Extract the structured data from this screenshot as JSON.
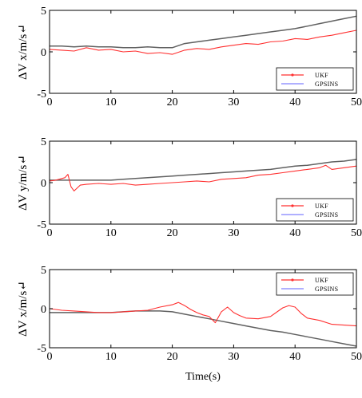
{
  "chart_data": [
    {
      "type": "line",
      "ylabel": "ΔV x/m/s↵",
      "xlabel": "",
      "xlim": [
        0,
        50
      ],
      "ylim": [
        -5,
        5
      ],
      "xticks": [
        "0",
        "10",
        "20",
        "30",
        "40",
        "50"
      ],
      "yticks": [
        "5",
        "0",
        "-5"
      ],
      "legend": {
        "placement": "bottom-right",
        "entries": [
          "UKF",
          "GPSINS"
        ]
      },
      "series": [
        {
          "name": "UKF",
          "color": "#ff3030",
          "x": [
            0,
            2,
            4,
            6,
            8,
            10,
            12,
            14,
            16,
            18,
            20,
            22,
            24,
            26,
            28,
            30,
            32,
            34,
            36,
            38,
            40,
            42,
            44,
            46,
            48,
            50
          ],
          "y": [
            0.3,
            0.2,
            0.1,
            0.5,
            0.2,
            0.3,
            0.0,
            0.1,
            -0.2,
            -0.1,
            -0.3,
            0.2,
            0.4,
            0.3,
            0.6,
            0.8,
            1.0,
            0.9,
            1.2,
            1.3,
            1.6,
            1.5,
            1.8,
            2.0,
            2.3,
            2.6
          ]
        },
        {
          "name": "GPSINS",
          "color": "#606060",
          "x": [
            0,
            2,
            4,
            6,
            8,
            10,
            12,
            14,
            16,
            18,
            20,
            22,
            24,
            26,
            28,
            30,
            32,
            34,
            36,
            38,
            40,
            42,
            44,
            46,
            48,
            50
          ],
          "y": [
            0.7,
            0.7,
            0.6,
            0.7,
            0.6,
            0.6,
            0.5,
            0.5,
            0.6,
            0.5,
            0.5,
            1.0,
            1.2,
            1.4,
            1.6,
            1.8,
            2.0,
            2.2,
            2.4,
            2.6,
            2.8,
            3.1,
            3.4,
            3.7,
            4.0,
            4.3
          ]
        }
      ]
    },
    {
      "type": "line",
      "ylabel": "ΔV y/m/s↵",
      "xlabel": "",
      "xlim": [
        0,
        50
      ],
      "ylim": [
        -5,
        5
      ],
      "xticks": [
        "0",
        "10",
        "20",
        "30",
        "40",
        "50"
      ],
      "yticks": [
        "5",
        "0",
        "-5"
      ],
      "legend": {
        "placement": "bottom-right",
        "entries": [
          "UKF",
          "GPSINS"
        ]
      },
      "series": [
        {
          "name": "UKF",
          "color": "#ff3030",
          "x": [
            0,
            1,
            2,
            2.5,
            3,
            3.5,
            4,
            5,
            6,
            8,
            10,
            12,
            14,
            16,
            18,
            20,
            22,
            24,
            26,
            28,
            30,
            32,
            34,
            36,
            38,
            40,
            42,
            44,
            45,
            46,
            48,
            50
          ],
          "y": [
            0.2,
            0.3,
            0.5,
            0.6,
            1.0,
            -0.5,
            -1.0,
            -0.3,
            -0.2,
            -0.1,
            -0.2,
            -0.1,
            -0.3,
            -0.2,
            -0.1,
            0.0,
            0.1,
            0.2,
            0.1,
            0.4,
            0.5,
            0.6,
            0.9,
            1.0,
            1.2,
            1.4,
            1.6,
            1.8,
            2.1,
            1.6,
            1.8,
            2.0
          ]
        },
        {
          "name": "GPSINS",
          "color": "#606060",
          "x": [
            0,
            2,
            4,
            6,
            8,
            10,
            12,
            14,
            16,
            18,
            20,
            22,
            24,
            26,
            28,
            30,
            32,
            34,
            36,
            38,
            40,
            42,
            44,
            46,
            48,
            50
          ],
          "y": [
            0.3,
            0.3,
            0.3,
            0.3,
            0.3,
            0.3,
            0.4,
            0.5,
            0.6,
            0.7,
            0.8,
            0.9,
            1.0,
            1.1,
            1.2,
            1.3,
            1.4,
            1.5,
            1.6,
            1.8,
            2.0,
            2.1,
            2.3,
            2.5,
            2.6,
            2.8
          ]
        }
      ]
    },
    {
      "type": "line",
      "ylabel": "ΔV x/m/s↵",
      "xlabel": "Time(s)",
      "xlim": [
        0,
        50
      ],
      "ylim": [
        -5,
        5
      ],
      "xticks": [
        "0",
        "10",
        "20",
        "30",
        "40",
        "50"
      ],
      "yticks": [
        "5",
        "0",
        "-5"
      ],
      "legend": {
        "placement": "top-right",
        "entries": [
          "UKF",
          "GPSINS"
        ]
      },
      "series": [
        {
          "name": "UKF",
          "color": "#ff3030",
          "x": [
            0,
            2,
            4,
            6,
            8,
            10,
            12,
            14,
            16,
            18,
            20,
            21,
            22,
            23,
            24,
            25,
            26,
            27,
            28,
            29,
            30,
            31,
            32,
            34,
            36,
            38,
            39,
            40,
            41,
            42,
            44,
            46,
            48,
            50
          ],
          "y": [
            0.0,
            -0.2,
            -0.3,
            -0.4,
            -0.5,
            -0.5,
            -0.4,
            -0.3,
            -0.2,
            0.2,
            0.5,
            0.8,
            0.4,
            -0.1,
            -0.5,
            -0.8,
            -1.0,
            -1.8,
            -0.4,
            0.2,
            -0.5,
            -0.9,
            -1.2,
            -1.3,
            -1.0,
            0.1,
            0.4,
            0.2,
            -0.6,
            -1.2,
            -1.5,
            -2.0,
            -2.1,
            -2.2
          ]
        },
        {
          "name": "GPSINS",
          "color": "#606060",
          "x": [
            0,
            2,
            4,
            6,
            8,
            10,
            12,
            14,
            16,
            18,
            20,
            22,
            24,
            26,
            28,
            30,
            32,
            34,
            36,
            38,
            40,
            42,
            44,
            46,
            48,
            50
          ],
          "y": [
            -0.5,
            -0.5,
            -0.5,
            -0.5,
            -0.5,
            -0.5,
            -0.4,
            -0.3,
            -0.3,
            -0.3,
            -0.4,
            -0.7,
            -1.0,
            -1.3,
            -1.6,
            -1.9,
            -2.2,
            -2.5,
            -2.8,
            -3.0,
            -3.3,
            -3.6,
            -3.9,
            -4.2,
            -4.5,
            -4.8
          ]
        }
      ]
    }
  ]
}
